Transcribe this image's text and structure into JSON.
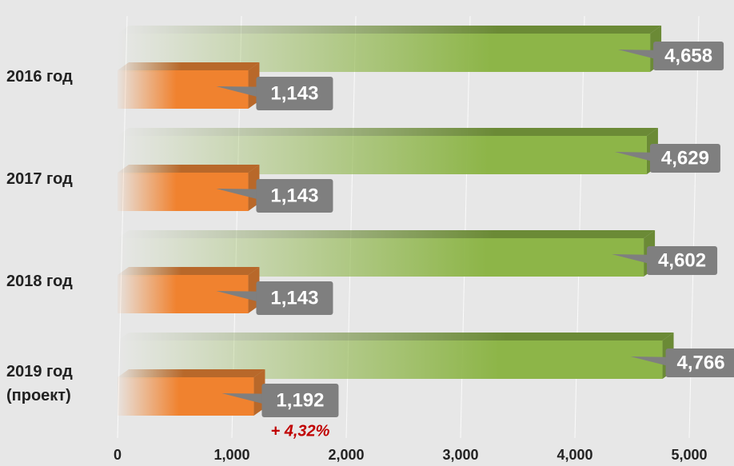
{
  "chart_data": {
    "type": "bar3d_horizontal",
    "categories": [
      "2016 год",
      "2017 год",
      "2018 год",
      "2019 год (проект)"
    ],
    "series": [
      {
        "color": "#8db548",
        "top_color": "#6b8a36",
        "values": [
          4658,
          4629,
          4602,
          4766
        ],
        "value_labels": [
          "4,658",
          "4,629",
          "4,602",
          "4,766"
        ]
      },
      {
        "color": "#f0822f",
        "top_color": "#b8682a",
        "values": [
          1143,
          1143,
          1143,
          1192
        ],
        "value_labels": [
          "1,143",
          "1,143",
          "1,143",
          "1,192"
        ]
      }
    ],
    "annotations": [
      {
        "text": "+ 4,32%",
        "category": 3,
        "color": "#c00000"
      }
    ],
    "xlim": [
      0,
      5000
    ],
    "xticks": [
      0,
      {
        "value": 1000,
        "label": "1,000"
      },
      {
        "value": 2000,
        "label": "2,000"
      },
      {
        "value": 3000,
        "label": "3,000"
      },
      {
        "value": 4000,
        "label": "4,000"
      },
      {
        "value": 5000,
        "label": "5,000"
      }
    ],
    "grid": true
  }
}
